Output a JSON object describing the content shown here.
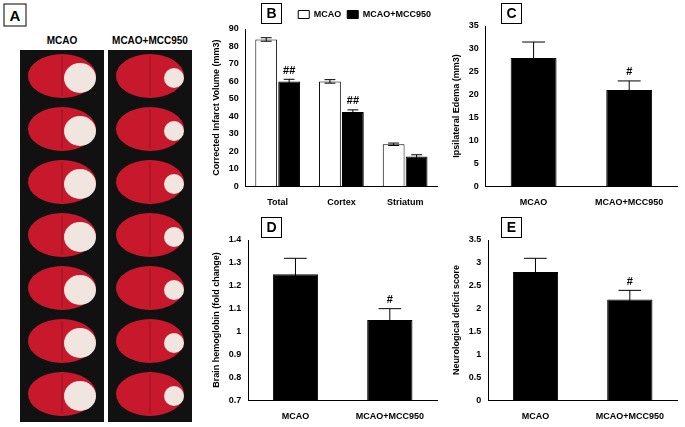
{
  "panel_a": {
    "title": "A",
    "columns": [
      "MCAO",
      "MCAO+MCC950"
    ]
  },
  "chart_data": [
    {
      "type": "bar",
      "title": "B",
      "ylabel": "Corrected Infarct Volume (mm3)",
      "categories": [
        "Total",
        "Cortex",
        "Striatum"
      ],
      "series": [
        {
          "name": "MCAO",
          "color": "#ffffff",
          "values": [
            84,
            60,
            24
          ],
          "errors": [
            1,
            1,
            0.7
          ]
        },
        {
          "name": "MCAO+MCC950",
          "color": "#000000",
          "values": [
            60,
            42.5,
            17
          ],
          "errors": [
            1.2,
            1.2,
            1
          ]
        }
      ],
      "ylim": [
        0,
        90
      ],
      "yticks": [
        0,
        10,
        20,
        30,
        40,
        50,
        60,
        70,
        80,
        90
      ],
      "grid": false,
      "legend": "upper right",
      "annotations": [
        {
          "text": "##",
          "category": "Total",
          "series": "MCAO+MCC950"
        },
        {
          "text": "##",
          "category": "Cortex",
          "series": "MCAO+MCC950"
        }
      ]
    },
    {
      "type": "bar",
      "title": "C",
      "ylabel": "Ipsilateral Edema (mm3)",
      "categories": [
        "MCAO",
        "MCAO+MCC950"
      ],
      "values": [
        28,
        21
      ],
      "errors": [
        3.5,
        2
      ],
      "color": "#000000",
      "ylim": [
        0,
        35
      ],
      "yticks": [
        0,
        5,
        10,
        15,
        20,
        25,
        30,
        35
      ],
      "grid": false,
      "annotations": [
        {
          "text": "#",
          "category": "MCAO+MCC950"
        }
      ]
    },
    {
      "type": "bar",
      "title": "D",
      "ylabel": "Brain hemoglobin (fold change)",
      "categories": [
        "MCAO",
        "MCAO+MCC950"
      ],
      "values": [
        1.25,
        1.05
      ],
      "errors": [
        0.07,
        0.05
      ],
      "color": "#000000",
      "ylim": [
        0.7,
        1.4
      ],
      "yticks": [
        0.7,
        0.8,
        0.9,
        1,
        1.1,
        1.2,
        1.3,
        1.4
      ],
      "grid": false,
      "annotations": [
        {
          "text": "#",
          "category": "MCAO+MCC950"
        }
      ]
    },
    {
      "type": "bar",
      "title": "E",
      "ylabel": "Neurological deficit score",
      "categories": [
        "MCAO",
        "MCAO+MCC950"
      ],
      "values": [
        2.8,
        2.2
      ],
      "errors": [
        0.3,
        0.2
      ],
      "color": "#000000",
      "ylim": [
        0,
        3.5
      ],
      "yticks": [
        0,
        0.5,
        1,
        1.5,
        2,
        2.5,
        3,
        3.5
      ],
      "grid": false,
      "annotations": [
        {
          "text": "#",
          "category": "MCAO+MCC950"
        }
      ]
    }
  ]
}
